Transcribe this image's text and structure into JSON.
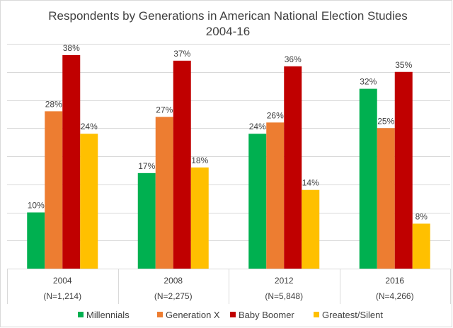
{
  "chart_data": {
    "type": "bar",
    "title": "Respondents by Generations in American National Election Studies",
    "subtitle": "2004-16",
    "categories": [
      "2004",
      "2008",
      "2012",
      "2016"
    ],
    "category_sublabels": [
      "(N=1,214)",
      "(N=2,275)",
      "(N=5,848)",
      "(N=4,266)"
    ],
    "series": [
      {
        "name": "Millennials",
        "color": "#00b050",
        "values": [
          10,
          17,
          24,
          32
        ]
      },
      {
        "name": "Generation X",
        "color": "#ed7d31",
        "values": [
          28,
          27,
          26,
          25
        ]
      },
      {
        "name": "Baby Boomer",
        "color": "#c00000",
        "values": [
          38,
          37,
          36,
          35
        ]
      },
      {
        "name": "Greatest/Silent",
        "color": "#ffc000",
        "values": [
          24,
          18,
          14,
          8
        ]
      }
    ],
    "value_suffix": "%",
    "xlabel": "",
    "ylabel": "",
    "ylim": [
      0,
      40
    ],
    "ytick_step": 5,
    "y_axis_labels_shown": false,
    "grid": true,
    "legend_position": "bottom"
  }
}
